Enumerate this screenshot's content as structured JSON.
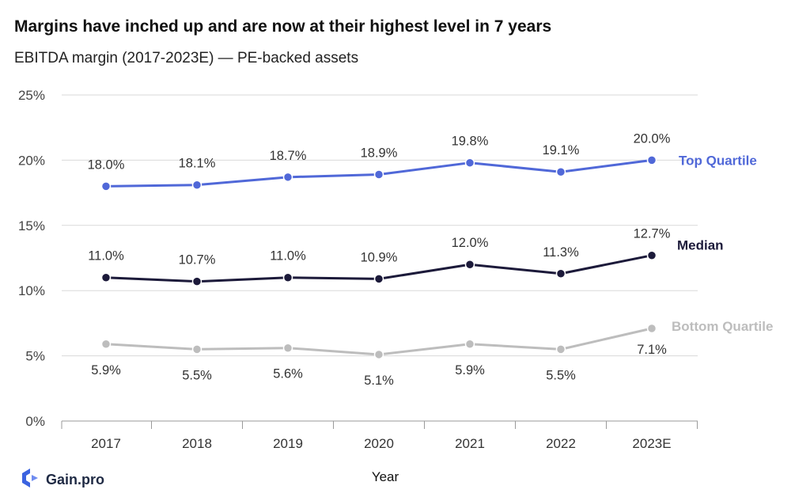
{
  "header": {
    "title": "Margins have inched up and are now at their highest level in 7 years",
    "subtitle": "EBITDA margin (2017-2023E) —  PE-backed assets"
  },
  "brand": {
    "name": "Gain.pro",
    "color": "#3b63e0"
  },
  "chart_data": {
    "type": "line",
    "categories": [
      "2017",
      "2018",
      "2019",
      "2020",
      "2021",
      "2022",
      "2023E"
    ],
    "xlabel": "Year",
    "ylabel": "",
    "ylim": [
      0,
      25
    ],
    "yticks": [
      0,
      5,
      10,
      15,
      20,
      25
    ],
    "ytick_labels": [
      "0%",
      "5%",
      "10%",
      "15%",
      "20%",
      "25%"
    ],
    "grid": true,
    "series": [
      {
        "name": "Top Quartile",
        "color": "#5068d8",
        "values": [
          18.0,
          18.1,
          18.7,
          18.9,
          19.8,
          19.1,
          20.0
        ],
        "labels": [
          "18.0%",
          "18.1%",
          "18.7%",
          "18.9%",
          "19.8%",
          "19.1%",
          "20.0%"
        ],
        "label_position": "above"
      },
      {
        "name": "Median",
        "color": "#1c1a3a",
        "values": [
          11.0,
          10.7,
          11.0,
          10.9,
          12.0,
          11.3,
          12.7
        ],
        "labels": [
          "11.0%",
          "10.7%",
          "11.0%",
          "10.9%",
          "12.0%",
          "11.3%",
          "12.7%"
        ],
        "label_position": "above"
      },
      {
        "name": "Bottom Quartile",
        "color": "#bdbdbd",
        "values": [
          5.9,
          5.5,
          5.6,
          5.1,
          5.9,
          5.5,
          7.1
        ],
        "labels": [
          "5.9%",
          "5.5%",
          "5.6%",
          "5.1%",
          "5.9%",
          "5.5%",
          "7.1%"
        ],
        "label_position": "below"
      }
    ]
  }
}
